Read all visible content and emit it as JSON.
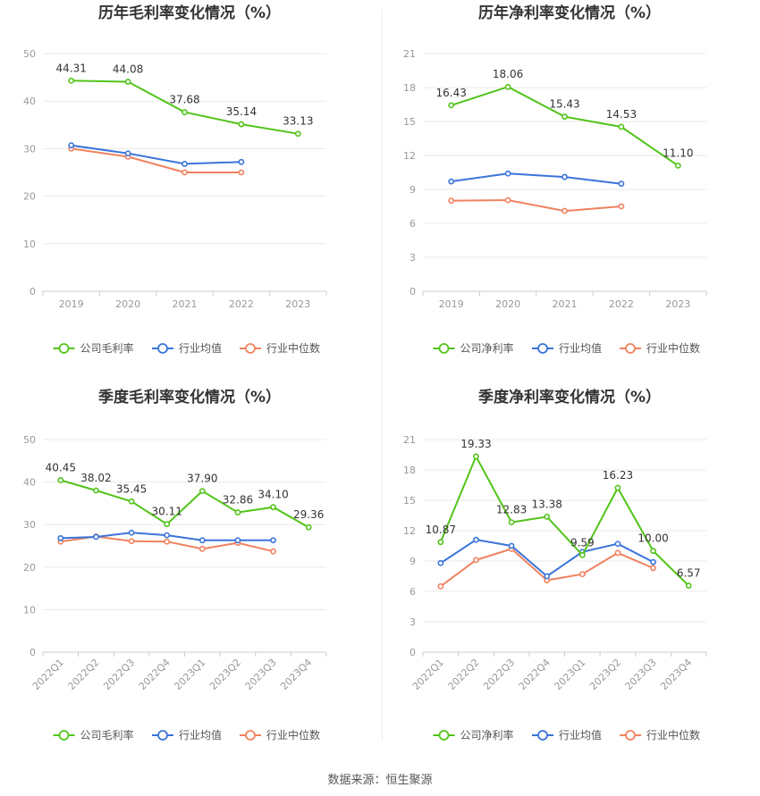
{
  "source": "数据来源：恒生聚源",
  "colors": {
    "company": "#52c41a",
    "avg": "#3a74d9",
    "median": "#f0825f"
  },
  "chart_data": [
    {
      "type": "line",
      "title": "历年毛利率变化情况（%）",
      "categories": [
        "2019",
        "2020",
        "2021",
        "2022",
        "2023"
      ],
      "ylim": [
        0,
        50
      ],
      "yticks": [
        0,
        10,
        20,
        30,
        40,
        50
      ],
      "rotate_x": false,
      "series": [
        {
          "name": "公司毛利率",
          "key": "company",
          "values": [
            44.31,
            44.08,
            37.68,
            35.14,
            33.13
          ],
          "labels": [
            "44.31",
            "44.08",
            "37.68",
            "35.14",
            "33.13"
          ]
        },
        {
          "name": "行业均值",
          "key": "avg",
          "values": [
            30.7,
            29.0,
            26.8,
            27.2,
            null
          ]
        },
        {
          "name": "行业中位数",
          "key": "median",
          "values": [
            30.0,
            28.3,
            25.0,
            25.0,
            null
          ]
        }
      ]
    },
    {
      "type": "line",
      "title": "历年净利率变化情况（%）",
      "categories": [
        "2019",
        "2020",
        "2021",
        "2022",
        "2023"
      ],
      "ylim": [
        0,
        21
      ],
      "yticks": [
        0,
        3,
        6,
        9,
        12,
        15,
        18,
        21
      ],
      "rotate_x": false,
      "series": [
        {
          "name": "公司净利率",
          "key": "company",
          "values": [
            16.43,
            18.06,
            15.43,
            14.53,
            11.1
          ],
          "labels": [
            "16.43",
            "18.06",
            "15.43",
            "14.53",
            "11.10"
          ]
        },
        {
          "name": "行业均值",
          "key": "avg",
          "values": [
            9.7,
            10.4,
            10.1,
            9.5,
            null
          ]
        },
        {
          "name": "行业中位数",
          "key": "median",
          "values": [
            8.0,
            8.05,
            7.1,
            7.5,
            null
          ]
        }
      ]
    },
    {
      "type": "line",
      "title": "季度毛利率变化情况（%）",
      "categories": [
        "2022Q1",
        "2022Q2",
        "2022Q3",
        "2022Q4",
        "2023Q1",
        "2023Q2",
        "2023Q3",
        "2023Q4"
      ],
      "ylim": [
        0,
        50
      ],
      "yticks": [
        0,
        10,
        20,
        30,
        40,
        50
      ],
      "rotate_x": true,
      "series": [
        {
          "name": "公司毛利率",
          "key": "company",
          "values": [
            40.45,
            38.02,
            35.45,
            30.11,
            37.9,
            32.86,
            34.1,
            29.36
          ],
          "labels": [
            "40.45",
            "38.02",
            "35.45",
            "30.11",
            "37.90",
            "32.86",
            "34.10",
            "29.36"
          ]
        },
        {
          "name": "行业均值",
          "key": "avg",
          "values": [
            26.8,
            27.1,
            28.1,
            27.5,
            26.3,
            26.3,
            26.3,
            null
          ]
        },
        {
          "name": "行业中位数",
          "key": "median",
          "values": [
            26.0,
            27.2,
            26.1,
            26.0,
            24.3,
            25.7,
            23.7,
            null
          ]
        }
      ]
    },
    {
      "type": "line",
      "title": "季度净利率变化情况（%）",
      "categories": [
        "2022Q1",
        "2022Q2",
        "2022Q3",
        "2022Q4",
        "2023Q1",
        "2023Q2",
        "2023Q3",
        "2023Q4"
      ],
      "ylim": [
        0,
        21
      ],
      "yticks": [
        0,
        3,
        6,
        9,
        12,
        15,
        18,
        21
      ],
      "rotate_x": true,
      "series": [
        {
          "name": "公司净利率",
          "key": "company",
          "values": [
            10.87,
            19.33,
            12.83,
            13.38,
            9.59,
            16.23,
            10.0,
            6.57
          ],
          "labels": [
            "10.87",
            "19.33",
            "12.83",
            "13.38",
            "9.59",
            "16.23",
            "10.00",
            "6.57"
          ]
        },
        {
          "name": "行业均值",
          "key": "avg",
          "values": [
            8.8,
            11.1,
            10.5,
            7.5,
            9.9,
            10.7,
            8.9,
            null
          ]
        },
        {
          "name": "行业中位数",
          "key": "median",
          "values": [
            6.5,
            9.1,
            10.2,
            7.1,
            7.7,
            9.8,
            8.3,
            null
          ]
        }
      ]
    }
  ]
}
